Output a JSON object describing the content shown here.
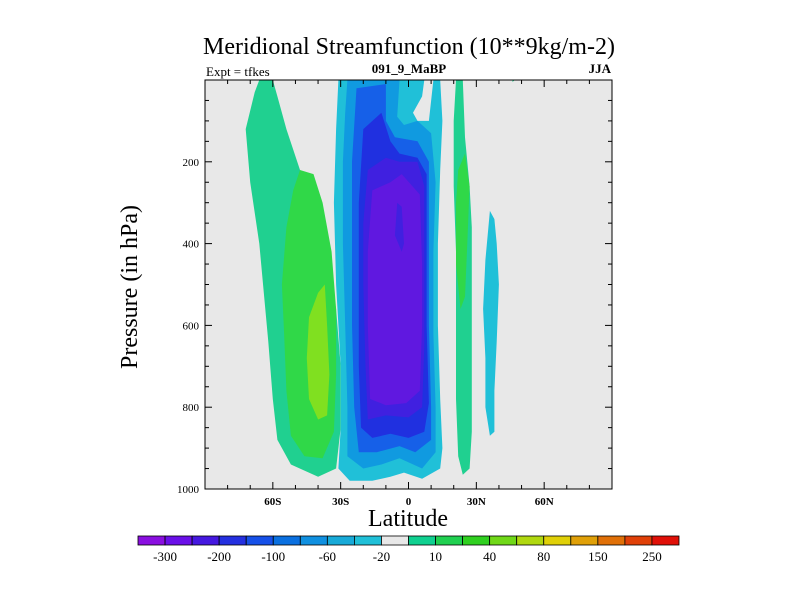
{
  "chart_data": {
    "type": "filled-contour",
    "title": "Meridional Streamfunction (10**9kg/m-2)",
    "subtitle_left": "Expt = tfkes",
    "subtitle_center": "091_9_MaBP",
    "subtitle_right": "JJA",
    "xlabel": "Latitude",
    "ylabel": "Pressure (in hPa)",
    "xlim": [
      -90,
      90
    ],
    "ylim": [
      1000,
      0
    ],
    "x_ticks": [
      {
        "value": -60,
        "label": "60S"
      },
      {
        "value": -30,
        "label": "30S"
      },
      {
        "value": 0,
        "label": "0"
      },
      {
        "value": 30,
        "label": "30N"
      },
      {
        "value": 60,
        "label": "60N"
      }
    ],
    "y_ticks": [
      {
        "value": 200,
        "label": "200"
      },
      {
        "value": 400,
        "label": "400"
      },
      {
        "value": 600,
        "label": "600"
      },
      {
        "value": 800,
        "label": "800"
      },
      {
        "value": 1000,
        "label": "1000"
      }
    ],
    "background_color": "#e8e8e8",
    "colorbar": {
      "levels": [
        "-300",
        "-200",
        "-100",
        "-60",
        "-20",
        "10",
        "40",
        "80",
        "150",
        "250"
      ],
      "colors": [
        "#8a0fe0",
        "#6a10e8",
        "#4518e0",
        "#2430e0",
        "#1650e8",
        "#0a70e0",
        "#1090e0",
        "#18aad8",
        "#20c0d8",
        "#e8e8e8",
        "#10d090",
        "#20d050",
        "#30d020",
        "#70d818",
        "#b0d810",
        "#e0d008",
        "#e0a008",
        "#e07008",
        "#e04008",
        "#e01008"
      ]
    },
    "regions": [
      {
        "level_color": "#20d090",
        "outline": [
          [
            -66,
            0
          ],
          [
            -60,
            0
          ],
          [
            -58,
            40
          ],
          [
            -54,
            120
          ],
          [
            -48,
            220
          ],
          [
            -42,
            330
          ],
          [
            -36,
            440
          ],
          [
            -32,
            560
          ],
          [
            -30,
            700
          ],
          [
            -30,
            850
          ],
          [
            -32,
            950
          ],
          [
            -40,
            970
          ],
          [
            -52,
            940
          ],
          [
            -58,
            880
          ],
          [
            -60,
            780
          ],
          [
            -62,
            640
          ],
          [
            -64,
            520
          ],
          [
            -66,
            400
          ],
          [
            -70,
            250
          ],
          [
            -72,
            120
          ],
          [
            -68,
            30
          ]
        ]
      },
      {
        "level_color": "#30d848",
        "outline": [
          [
            -48,
            220
          ],
          [
            -42,
            230
          ],
          [
            -38,
            300
          ],
          [
            -34,
            420
          ],
          [
            -32,
            560
          ],
          [
            -32,
            720
          ],
          [
            -33,
            860
          ],
          [
            -38,
            925
          ],
          [
            -46,
            920
          ],
          [
            -52,
            870
          ],
          [
            -54,
            760
          ],
          [
            -55,
            620
          ],
          [
            -56,
            500
          ],
          [
            -54,
            360
          ],
          [
            -51,
            270
          ]
        ]
      },
      {
        "level_color": "#80e020",
        "outline": [
          [
            -40,
            520
          ],
          [
            -37,
            500
          ],
          [
            -36,
            600
          ],
          [
            -35,
            720
          ],
          [
            -36,
            820
          ],
          [
            -40,
            830
          ],
          [
            -44,
            780
          ],
          [
            -45,
            680
          ],
          [
            -44,
            580
          ]
        ]
      },
      {
        "level_color": "#20c0d8",
        "outline": [
          [
            -31,
            0
          ],
          [
            7,
            0
          ],
          [
            6,
            40
          ],
          [
            2,
            80
          ],
          [
            4,
            100
          ],
          [
            9,
            100
          ],
          [
            11,
            0
          ],
          [
            14,
            0
          ],
          [
            15,
            100
          ],
          [
            14,
            220
          ],
          [
            13,
            400
          ],
          [
            13,
            600
          ],
          [
            14,
            780
          ],
          [
            15,
            900
          ],
          [
            14,
            950
          ],
          [
            6,
            975
          ],
          [
            -2,
            960
          ],
          [
            -8,
            970
          ],
          [
            -16,
            980
          ],
          [
            -26,
            980
          ],
          [
            -31,
            950
          ],
          [
            -30,
            850
          ],
          [
            -30,
            700
          ],
          [
            -32,
            500
          ],
          [
            -33,
            300
          ],
          [
            -32,
            120
          ]
        ]
      },
      {
        "level_color": "#109ae0",
        "outline": [
          [
            -27,
            0
          ],
          [
            -4,
            0
          ],
          [
            -5,
            90
          ],
          [
            -2,
            110
          ],
          [
            4,
            100
          ],
          [
            10,
            130
          ],
          [
            12,
            250
          ],
          [
            11,
            420
          ],
          [
            11,
            620
          ],
          [
            12,
            800
          ],
          [
            12,
            910
          ],
          [
            6,
            950
          ],
          [
            -4,
            925
          ],
          [
            -12,
            940
          ],
          [
            -20,
            950
          ],
          [
            -27,
            920
          ],
          [
            -27,
            800
          ],
          [
            -28,
            600
          ],
          [
            -29,
            400
          ],
          [
            -29,
            200
          ],
          [
            -28,
            80
          ]
        ]
      },
      {
        "level_color": "#1660e8",
        "outline": [
          [
            -23,
            20
          ],
          [
            -10,
            10
          ],
          [
            -10,
            100
          ],
          [
            -6,
            140
          ],
          [
            4,
            150
          ],
          [
            9,
            200
          ],
          [
            9,
            400
          ],
          [
            9,
            600
          ],
          [
            10,
            800
          ],
          [
            10,
            880
          ],
          [
            3,
            910
          ],
          [
            -4,
            895
          ],
          [
            -14,
            910
          ],
          [
            -22,
            910
          ],
          [
            -24,
            800
          ],
          [
            -25,
            600
          ],
          [
            -25,
            400
          ],
          [
            -25,
            200
          ]
        ]
      },
      {
        "level_color": "#2030e0",
        "outline": [
          [
            -20,
            120
          ],
          [
            -12,
            80
          ],
          [
            -8,
            150
          ],
          [
            -4,
            180
          ],
          [
            4,
            190
          ],
          [
            8,
            230
          ],
          [
            8,
            400
          ],
          [
            8,
            600
          ],
          [
            9,
            790
          ],
          [
            7,
            860
          ],
          [
            0,
            875
          ],
          [
            -8,
            865
          ],
          [
            -16,
            875
          ],
          [
            -21,
            850
          ],
          [
            -22,
            700
          ],
          [
            -22,
            500
          ],
          [
            -22,
            300
          ]
        ]
      },
      {
        "level_color": "#4020e0",
        "outline": [
          [
            -18,
            220
          ],
          [
            -10,
            190
          ],
          [
            -4,
            200
          ],
          [
            4,
            200
          ],
          [
            7,
            260
          ],
          [
            7,
            450
          ],
          [
            7,
            650
          ],
          [
            6,
            800
          ],
          [
            0,
            825
          ],
          [
            -10,
            820
          ],
          [
            -18,
            830
          ],
          [
            -19,
            700
          ],
          [
            -20,
            500
          ],
          [
            -20,
            350
          ]
        ]
      },
      {
        "level_color": "#6018e0",
        "outline": [
          [
            -16,
            270
          ],
          [
            -8,
            250
          ],
          [
            -3,
            230
          ],
          [
            5,
            280
          ],
          [
            6,
            450
          ],
          [
            6,
            600
          ],
          [
            5,
            760
          ],
          [
            -1,
            790
          ],
          [
            -10,
            795
          ],
          [
            -17,
            780
          ],
          [
            -18,
            600
          ],
          [
            -18,
            420
          ]
        ]
      },
      {
        "level_color": "#4020e0",
        "outline": [
          [
            -5,
            300
          ],
          [
            -3,
            310
          ],
          [
            -2,
            400
          ],
          [
            -3,
            420
          ],
          [
            -6,
            380
          ]
        ]
      },
      {
        "level_color": "#20d090",
        "outline": [
          [
            21,
            0
          ],
          [
            24,
            0
          ],
          [
            25,
            140
          ],
          [
            27,
            260
          ],
          [
            28,
            360
          ],
          [
            28,
            520
          ],
          [
            28,
            700
          ],
          [
            28,
            860
          ],
          [
            27,
            950
          ],
          [
            24,
            965
          ],
          [
            22,
            920
          ],
          [
            21,
            780
          ],
          [
            21,
            580
          ],
          [
            21,
            420
          ],
          [
            20,
            260
          ],
          [
            20,
            100
          ]
        ]
      },
      {
        "level_color": "#30d848",
        "outline": [
          [
            22,
            220
          ],
          [
            25,
            180
          ],
          [
            27,
            260
          ],
          [
            26,
            400
          ],
          [
            25,
            530
          ],
          [
            23,
            560
          ],
          [
            21,
            450
          ],
          [
            21,
            300
          ]
        ]
      },
      {
        "level_color": "#20c0d8",
        "outline": [
          [
            36,
            320
          ],
          [
            38,
            340
          ],
          [
            39,
            400
          ],
          [
            40,
            500
          ],
          [
            39,
            640
          ],
          [
            38,
            760
          ],
          [
            38,
            860
          ],
          [
            36,
            870
          ],
          [
            34,
            800
          ],
          [
            34,
            680
          ],
          [
            33,
            560
          ],
          [
            34,
            440
          ]
        ]
      },
      {
        "level_color": "#20d090",
        "outline": [
          [
            46,
            0
          ],
          [
            47,
            0
          ],
          [
            46,
            5
          ]
        ]
      }
    ]
  }
}
